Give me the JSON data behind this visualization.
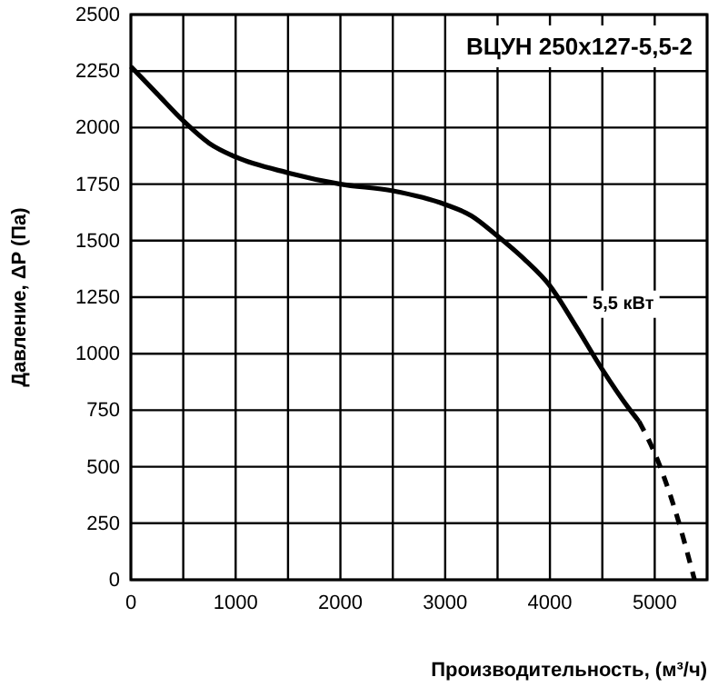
{
  "chart_data": {
    "type": "line",
    "title": "ВЦУН 250x127-5,5-2",
    "xlabel": "Производительность, (м³/ч)",
    "ylabel": "Давление, ΔP (Па)",
    "xlim": [
      0,
      5500
    ],
    "ylim": [
      0,
      2500
    ],
    "xticks": [
      0,
      {
        "value": 500,
        "label": null
      },
      1000,
      {
        "value": 1500,
        "label": null
      },
      2000,
      {
        "value": 2500,
        "label": null
      },
      3000,
      {
        "value": 3500,
        "label": null
      },
      4000,
      {
        "value": 4500,
        "label": null
      },
      5000,
      {
        "value": 5500,
        "label": null
      }
    ],
    "yticks": [
      0,
      250,
      500,
      750,
      1000,
      1250,
      1500,
      1750,
      2000,
      2250,
      2500
    ],
    "grid": true,
    "series": [
      {
        "color": "#000000",
        "line_style": "solid",
        "x": [
          0,
          250,
          500,
          750,
          1000,
          1500,
          2000,
          2500,
          3000,
          3250,
          3500,
          3750,
          4000,
          4250,
          4500,
          4750,
          4850
        ],
        "values": [
          2270,
          2150,
          2030,
          1930,
          1870,
          1800,
          1750,
          1720,
          1660,
          1610,
          1520,
          1420,
          1300,
          1120,
          930,
          760,
          700
        ]
      },
      {
        "color": "#000000",
        "line_style": "dashed",
        "x": [
          4850,
          5000,
          5200,
          5380
        ],
        "values": [
          700,
          560,
          300,
          0
        ]
      }
    ],
    "annotations": [
      {
        "text": "5,5 кВт",
        "x": 4700,
        "y": 1220
      }
    ]
  }
}
